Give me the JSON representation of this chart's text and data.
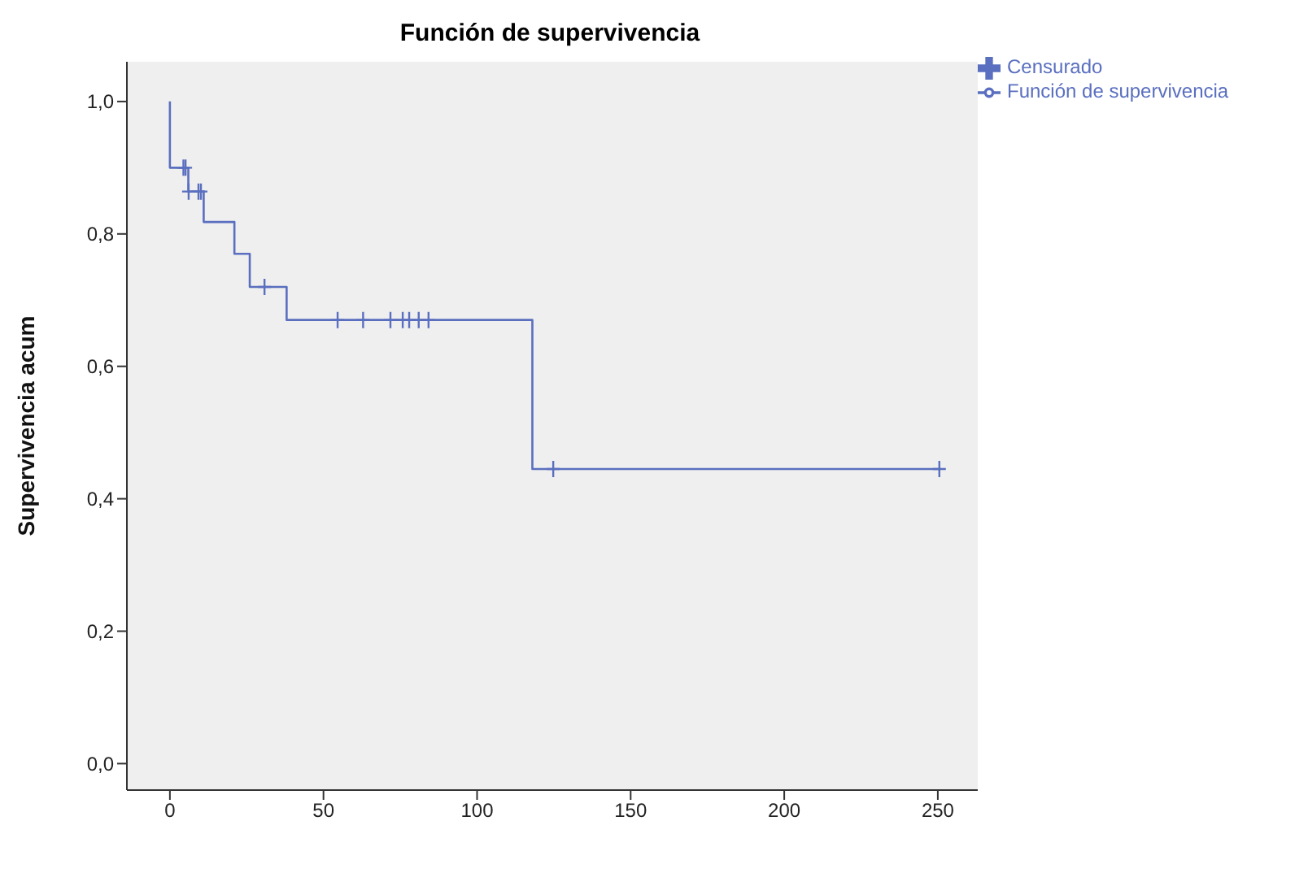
{
  "chart_data": {
    "type": "step",
    "title": "Función de supervivencia",
    "ylabel": "Supervivencia acum",
    "series": [
      {
        "name": "Función de supervivencia",
        "color": "#5a6fbf",
        "x": [
          0,
          0,
          6,
          11,
          21,
          26,
          38,
          118,
          251
        ],
        "values": [
          1.0,
          0.9,
          0.864,
          0.818,
          0.77,
          0.72,
          0.67,
          0.445,
          0.445
        ]
      },
      {
        "name": "Censurado",
        "color": "#5a6fbf",
        "type": "scatter",
        "marker": "cross",
        "x": [
          4.4,
          5.1,
          6.1,
          9.3,
          10.1,
          30.8,
          54.6,
          62.9,
          71.8,
          75.8,
          77.9,
          81,
          84.2,
          124.8,
          250.5
        ],
        "values": [
          0.9,
          0.9,
          0.864,
          0.864,
          0.864,
          0.72,
          0.67,
          0.67,
          0.67,
          0.67,
          0.67,
          0.67,
          0.67,
          0.445,
          0.445
        ]
      }
    ],
    "xlim": [
      -14,
      263
    ],
    "xticks": [
      0,
      50,
      100,
      150,
      200,
      250
    ],
    "ylim": [
      -0.04,
      1.06
    ],
    "yticks": [
      {
        "value": 0,
        "label": "0,0"
      },
      {
        "value": 0.2,
        "label": "0,2"
      },
      {
        "value": 0.4,
        "label": "0,4"
      },
      {
        "value": 0.6,
        "label": "0,6"
      },
      {
        "value": 0.8,
        "label": "0,8"
      },
      {
        "value": 1,
        "label": "1,0"
      }
    ],
    "legend": "top right"
  }
}
